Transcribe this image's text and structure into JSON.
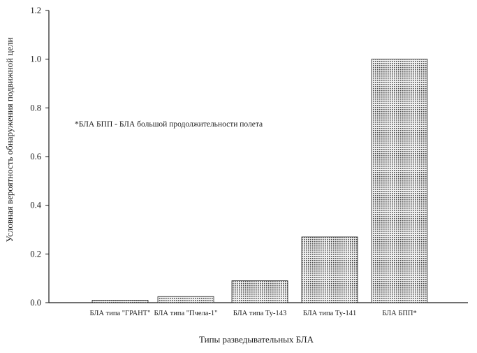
{
  "chart_data": {
    "type": "bar",
    "categories": [
      "БЛА типа \"ГРАНТ\"",
      "БЛА типа \"Пчела-1\"",
      "БЛА типа Ту-143",
      "БЛА типа Ту-141",
      "БЛА БПП*"
    ],
    "values": [
      0.01,
      0.025,
      0.09,
      0.27,
      1.0
    ],
    "xlabel": "Типы разведывательных БЛА",
    "ylabel": "Условная вероятность обнаружения подвижной цели",
    "ylim": [
      0,
      1.2
    ],
    "yticks": [
      "0.0",
      "0.2",
      "0.4",
      "0.6",
      "0.8",
      "1.0",
      "1.2"
    ],
    "annotation": "*БЛА БПП - БЛА большой продолжительности полета",
    "grid": false,
    "legend": "none",
    "colors": {
      "axis": "#1a1a1a",
      "bar_fill": "#d9d9d9",
      "bar_stroke": "#2a2a2a"
    }
  }
}
